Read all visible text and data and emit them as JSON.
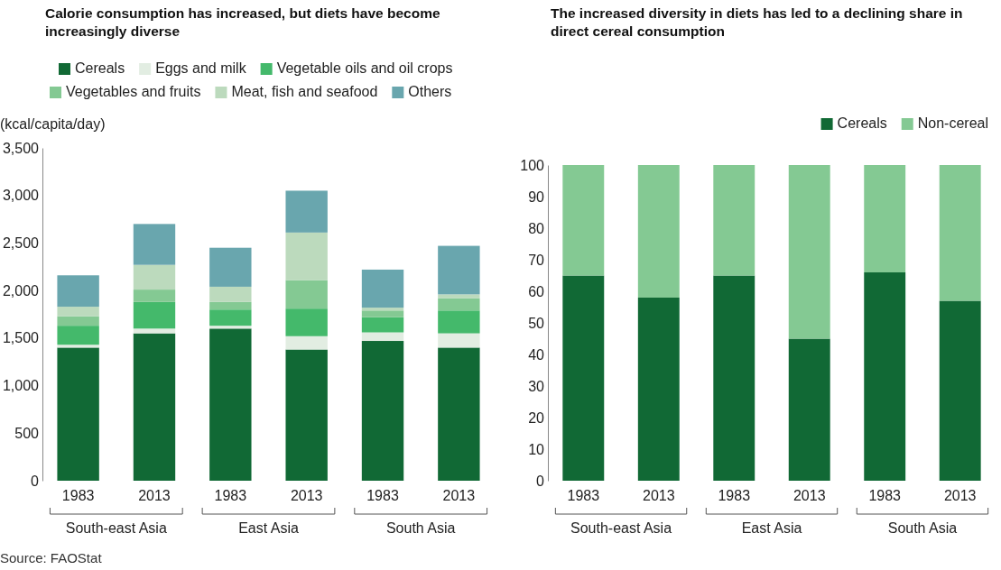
{
  "chart_data": [
    {
      "type": "bar",
      "stacked": true,
      "title": "Calorie consumption has increased, but diets have become increasingly diverse",
      "ylabel": "(kcal/capita/day)",
      "categories": [
        "1983",
        "2013",
        "1983",
        "2013",
        "1983",
        "2013"
      ],
      "series": [
        {
          "name": "Cereals",
          "color": "#116935",
          "values": [
            1400,
            1550,
            1600,
            1380,
            1470,
            1400
          ]
        },
        {
          "name": "Eggs and milk",
          "color": "#e2ede2",
          "values": [
            30,
            50,
            30,
            140,
            90,
            150
          ]
        },
        {
          "name": "Vegetable oils and oil crops",
          "color": "#44b96b",
          "values": [
            200,
            280,
            170,
            290,
            160,
            240
          ]
        },
        {
          "name": "Vegetables and fruits",
          "color": "#84c993",
          "values": [
            100,
            130,
            80,
            300,
            70,
            130
          ]
        },
        {
          "name": "Meat, fish and seafood",
          "color": "#bcdabd",
          "values": [
            100,
            260,
            160,
            500,
            30,
            40
          ]
        },
        {
          "name": "Others",
          "color": "#69a6ae",
          "values": [
            330,
            430,
            410,
            440,
            400,
            510
          ]
        }
      ],
      "ylim": [
        0,
        3500
      ],
      "yticks": [
        0,
        500,
        {
          "value": 1000,
          "label": "1,000"
        },
        {
          "value": 1500,
          "label": "1,500"
        },
        {
          "value": 2000,
          "label": "2,000"
        },
        {
          "value": 2500,
          "label": "2,500"
        },
        {
          "value": 3000,
          "label": "3,000"
        },
        {
          "value": 3500,
          "label": "3,500"
        }
      ],
      "legend": "top left",
      "grid": false,
      "annotations": [
        "South-east Asia",
        "East Asia",
        "South Asia",
        "Source: FAOStat"
      ]
    },
    {
      "type": "bar",
      "stacked": true,
      "title": "The increased diversity in diets has led to a declining share in direct cereal consumption",
      "categories": [
        "1983",
        "2013",
        "1983",
        "2013",
        "1983",
        "2013"
      ],
      "series": [
        {
          "name": "Cereals",
          "color": "#116935",
          "values": [
            65,
            58,
            65,
            45,
            66,
            57
          ]
        },
        {
          "name": "Non-cereal",
          "color": "#84c993",
          "values": [
            35,
            42,
            35,
            55,
            34,
            43
          ]
        }
      ],
      "ylim": [
        0,
        100
      ],
      "yticks": [
        0,
        10,
        20,
        30,
        40,
        50,
        60,
        70,
        80,
        90,
        100
      ],
      "legend": "top right",
      "grid": false,
      "annotations": [
        "South-east Asia",
        "East Asia",
        "South Asia"
      ]
    }
  ]
}
